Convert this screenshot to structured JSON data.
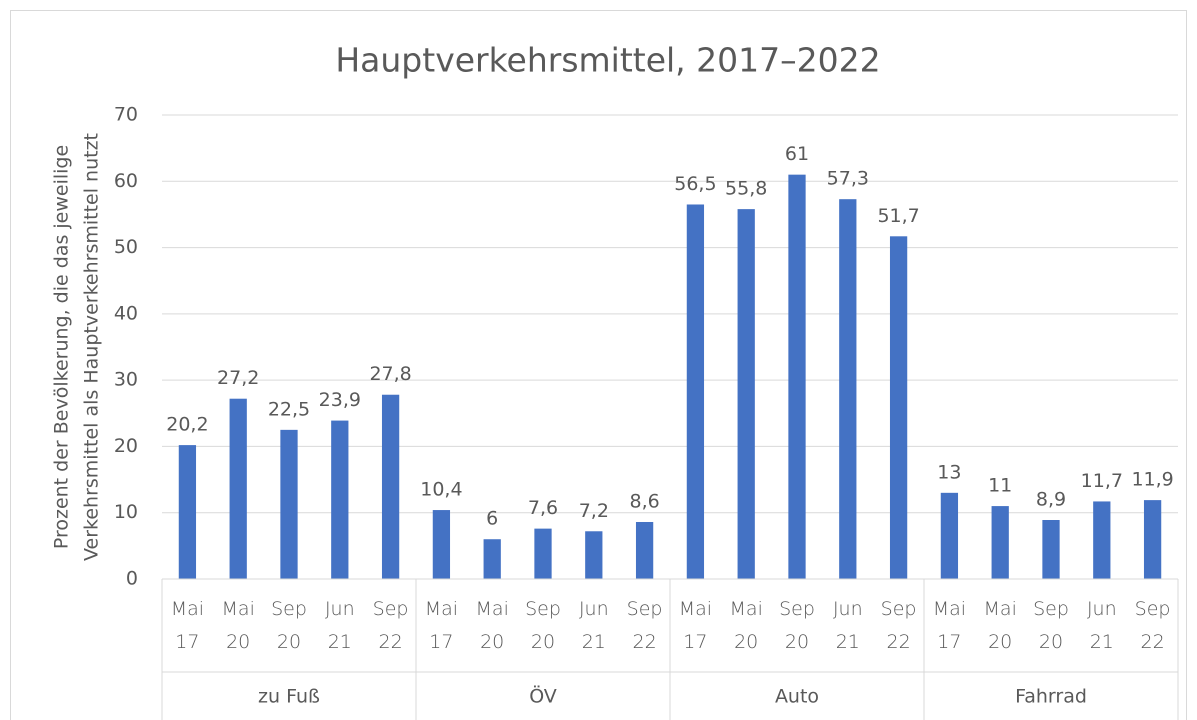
{
  "chart_data": {
    "type": "bar",
    "title": "Hauptverkehrsmittel, 2017–2022",
    "ylabel": [
      "Prozent  der Bevölkerung, die das jeweilige",
      "Verkehrsmittel als Hauptverkehrsmittel  nutzt"
    ],
    "color": "#4472c4",
    "ylim": [
      0,
      70
    ],
    "yticks": [
      0,
      10,
      20,
      30,
      40,
      50,
      60,
      70
    ],
    "grid": true,
    "groups": [
      {
        "name": "zu Fuß",
        "categories": [
          "Mai 17",
          "Mai 20",
          "Sep 20",
          "Jun 21",
          "Sep 22"
        ],
        "values": [
          20.2,
          27.2,
          22.5,
          23.9,
          27.8
        ],
        "value_labels": [
          "20,2",
          "27,2",
          "22,5",
          "23,9",
          "27,8"
        ]
      },
      {
        "name": "ÖV",
        "categories": [
          "Mai 17",
          "Mai 20",
          "Sep 20",
          "Jun 21",
          "Sep 22"
        ],
        "values": [
          10.4,
          6,
          7.6,
          7.2,
          8.6
        ],
        "value_labels": [
          "10,4",
          "6",
          "7,6",
          "7,2",
          "8,6"
        ]
      },
      {
        "name": "Auto",
        "categories": [
          "Mai 17",
          "Mai 20",
          "Sep 20",
          "Jun 21",
          "Sep 22"
        ],
        "values": [
          56.5,
          55.8,
          61,
          57.3,
          51.7
        ],
        "value_labels": [
          "56,5",
          "55,8",
          "61",
          "57,3",
          "51,7"
        ]
      },
      {
        "name": "Fahrrad",
        "categories": [
          "Mai 17",
          "Mai 20",
          "Sep 20",
          "Jun 21",
          "Sep 22"
        ],
        "values": [
          13,
          11,
          8.9,
          11.7,
          11.9
        ],
        "value_labels": [
          "13",
          "11",
          "8,9",
          "11,7",
          "11,9"
        ]
      }
    ]
  }
}
